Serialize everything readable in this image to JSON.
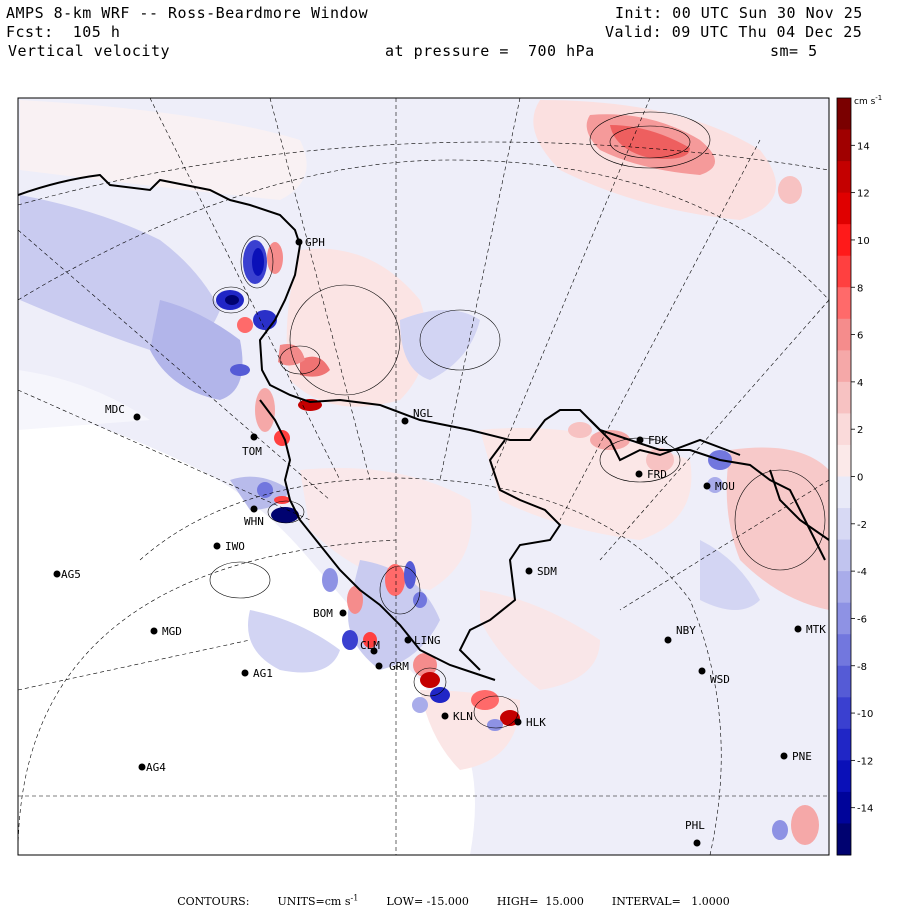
{
  "header": {
    "title": "AMPS 8-km WRF -- Ross-Beardmore Window",
    "fcst": "Fcst:  105 h",
    "field": "Vertical velocity",
    "init": "Init: 00 UTC Sun 30 Nov 25",
    "valid": "Valid: 09 UTC Thu 04 Dec 25",
    "pressure": "at pressure =  700 hPa",
    "smooth": "sm= 5"
  },
  "colorbar": {
    "units": "cm s",
    "units_exp": "-1",
    "ticks": [
      "14",
      "12",
      "10",
      "8",
      "6",
      "4",
      "2",
      "0",
      "-2",
      "-4",
      "-6",
      "-8",
      "-10",
      "-12",
      "-14"
    ],
    "positive_colors": [
      "#7a0000",
      "#a00000",
      "#c40000",
      "#e00000",
      "#ff1a1a",
      "#ff4040",
      "#ff6a6a",
      "#f58c8c",
      "#f5a8a8",
      "#f7c2c2",
      "#fadada",
      "#fbe9e9"
    ],
    "negative_colors": [
      "#e9eaf8",
      "#d7d9f4",
      "#c1c4ef",
      "#a9acea",
      "#8e92e4",
      "#7277de",
      "#555bd6",
      "#3a40d0",
      "#2026c6",
      "#0a10b8",
      "#00049a",
      "#000270"
    ]
  },
  "stations": [
    {
      "id": "GPH"
    },
    {
      "id": "MDC"
    },
    {
      "id": "NGL"
    },
    {
      "id": "TOM"
    },
    {
      "id": "FDK"
    },
    {
      "id": "FRD"
    },
    {
      "id": "MOU"
    },
    {
      "id": "WHN"
    },
    {
      "id": "IWO"
    },
    {
      "id": "SDM"
    },
    {
      "id": "AG5"
    },
    {
      "id": "BOM"
    },
    {
      "id": "MGD"
    },
    {
      "id": "NBY"
    },
    {
      "id": "MTK"
    },
    {
      "id": "LING"
    },
    {
      "id": "CLM"
    },
    {
      "id": "GRM"
    },
    {
      "id": "AG1"
    },
    {
      "id": "WSD"
    },
    {
      "id": "KLN"
    },
    {
      "id": "HLK"
    },
    {
      "id": "AG4"
    },
    {
      "id": "PNE"
    },
    {
      "id": "PHL"
    }
  ],
  "footer": {
    "contours_label": "CONTOURS:",
    "units_label": "UNITS=cm s",
    "units_exp": "-1",
    "low": "LOW= -15.000",
    "high": "HIGH=  15.000",
    "interval": "INTERVAL=   1.0000"
  }
}
